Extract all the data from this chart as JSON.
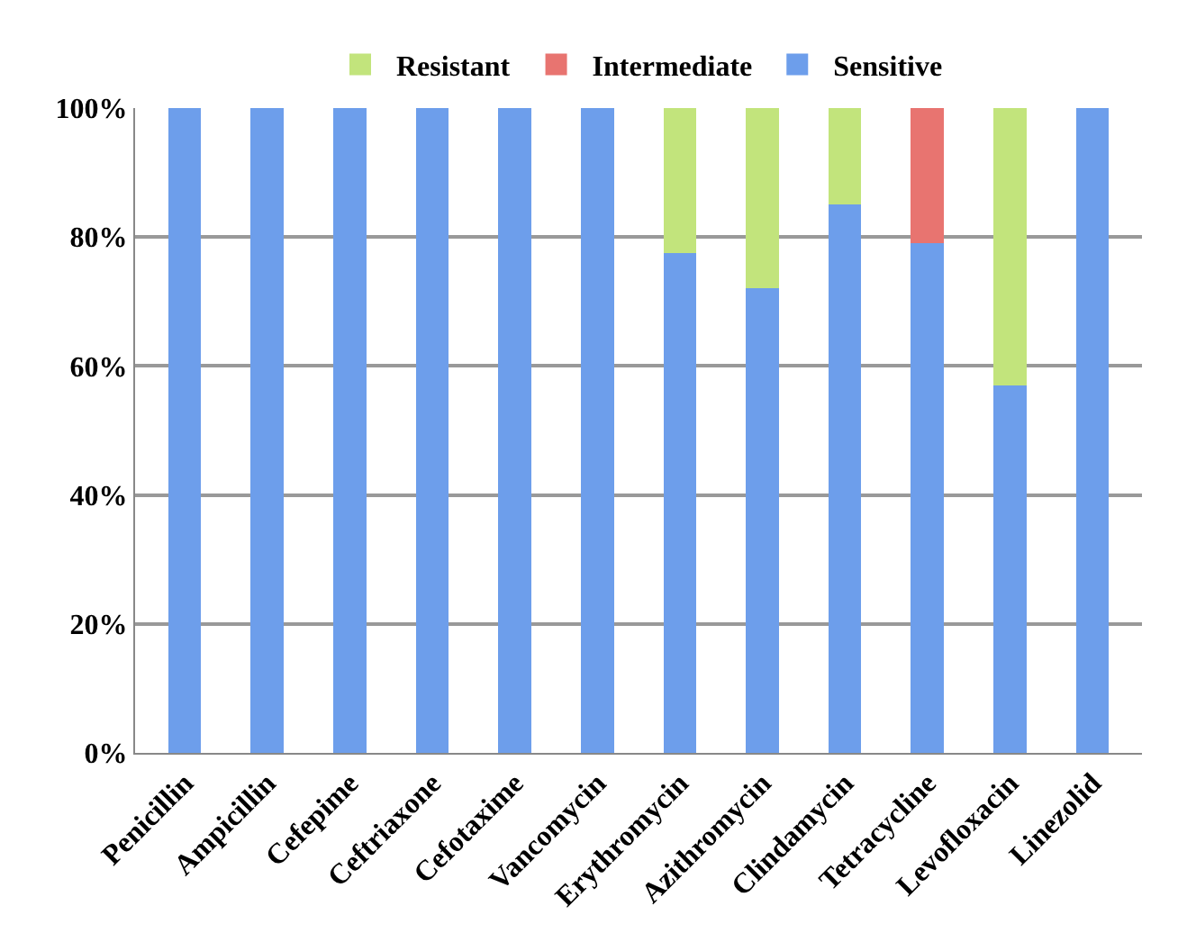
{
  "chart_data": {
    "type": "bar",
    "stacked": true,
    "categories": [
      "Penicillin",
      "Ampicillin",
      "Cefepime",
      "Ceftriaxone",
      "Cefotaxime",
      "Vancomycin",
      "Erythromycin",
      "Azithromycin",
      "Clindamycin",
      "Tetracycline",
      "Levofloxacin",
      "Linezolid"
    ],
    "series": [
      {
        "name": "Sensitive",
        "color": "#6d9eeb",
        "values": [
          100,
          100,
          100,
          100,
          100,
          100,
          77.5,
          72,
          85,
          79,
          57,
          100
        ]
      },
      {
        "name": "Intermediate",
        "color": "#e87470",
        "values": [
          null,
          null,
          null,
          null,
          null,
          null,
          null,
          null,
          null,
          21,
          null,
          null
        ]
      },
      {
        "name": "Resistant",
        "color": "#c2e47c",
        "values": [
          null,
          null,
          null,
          null,
          null,
          null,
          22.5,
          28,
          15,
          null,
          43,
          null
        ]
      }
    ],
    "ylim": [
      0,
      100
    ],
    "yticks": [
      {
        "value": 0,
        "label": "0%"
      },
      {
        "value": 20,
        "label": "20%"
      },
      {
        "value": 40,
        "label": "40%"
      },
      {
        "value": 60,
        "label": "60%"
      },
      {
        "value": 80,
        "label": "80%"
      },
      {
        "value": 100,
        "label": "100%"
      }
    ],
    "grid": "y",
    "legend": "top"
  }
}
